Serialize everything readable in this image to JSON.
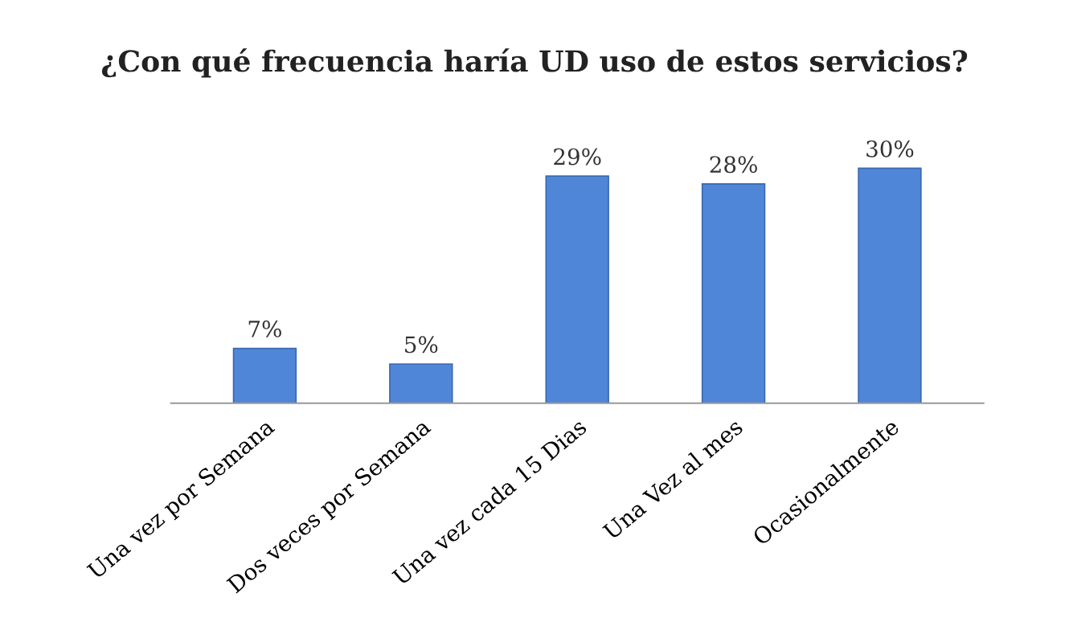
{
  "chart_data": {
    "type": "bar",
    "title": "¿Con qué frecuencia haría UD uso de estos servicios?",
    "categories": [
      "Una vez por Semana",
      "Dos veces por Semana",
      "Una vez cada 15 Dias",
      "Una Vez al mes",
      "Ocasionalmente"
    ],
    "values": [
      7,
      5,
      29,
      28,
      30
    ],
    "value_labels": [
      "7%",
      "5%",
      "29%",
      "28%",
      "30%"
    ],
    "color": "#4f86d8"
  }
}
